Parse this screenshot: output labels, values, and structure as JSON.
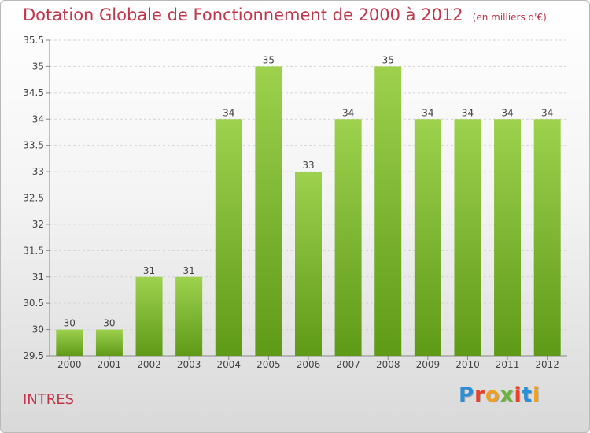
{
  "header": {
    "title": "Dotation Globale de Fonctionnement de 2000 à 2012",
    "subtitle": "(en milliers d'€)"
  },
  "footer": {
    "commune": "INTRES",
    "logo_letters": [
      "P",
      "r",
      "o",
      "x",
      "i",
      "t",
      "i"
    ]
  },
  "colors": {
    "title": "#c0364b",
    "bar_top": "#9dd14e",
    "bar_bottom": "#5f9a17",
    "logo": [
      "#2a8fd6",
      "#e8412c",
      "#f0a020",
      "#6cb33e",
      "#e8412c",
      "#2a8fd6",
      "#f0a020"
    ]
  },
  "chart_data": {
    "type": "bar",
    "categories": [
      "2000",
      "2001",
      "2002",
      "2003",
      "2004",
      "2005",
      "2006",
      "2007",
      "2008",
      "2009",
      "2010",
      "2011",
      "2012"
    ],
    "values": [
      30,
      30,
      31,
      31,
      34,
      35,
      33,
      34,
      35,
      34,
      34,
      34,
      34
    ],
    "data_labels": [
      "30",
      "30",
      "31",
      "31",
      "34",
      "35",
      "33",
      "34",
      "35",
      "34",
      "34",
      "34",
      "34"
    ],
    "ylim": [
      29.5,
      35.5
    ],
    "yticks": [
      "29.5",
      "30",
      "30.5",
      "31",
      "31.5",
      "32",
      "32.5",
      "33",
      "33.5",
      "34",
      "34.5",
      "35",
      "35.5"
    ],
    "grid": true,
    "legend": "none"
  }
}
